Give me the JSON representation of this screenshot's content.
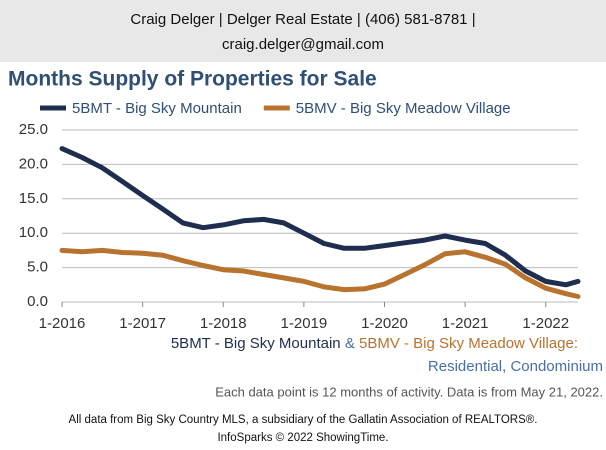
{
  "header": {
    "line1": "Craig Delger | Delger Real Estate | (406) 581-8781 |",
    "line2": "craig.delger@gmail.com"
  },
  "chart_data": {
    "type": "line",
    "title": "Months Supply of Properties for Sale",
    "x": [
      2016.0,
      2016.25,
      2016.5,
      2016.75,
      2017.0,
      2017.25,
      2017.5,
      2017.75,
      2018.0,
      2018.25,
      2018.5,
      2018.75,
      2019.0,
      2019.25,
      2019.5,
      2019.75,
      2020.0,
      2020.25,
      2020.5,
      2020.75,
      2021.0,
      2021.25,
      2021.5,
      2021.75,
      2022.0,
      2022.25,
      2022.4
    ],
    "series": [
      {
        "name": "5BMT - Big Sky Mountain",
        "color": "#1f2d4f",
        "values": [
          22.3,
          21.0,
          19.5,
          17.5,
          15.5,
          13.5,
          11.5,
          10.8,
          11.2,
          11.8,
          12.0,
          11.5,
          10.0,
          8.5,
          7.8,
          7.8,
          8.2,
          8.6,
          9.0,
          9.6,
          9.0,
          8.5,
          6.8,
          4.5,
          3.0,
          2.5,
          3.0
        ]
      },
      {
        "name": "5BMV - Big Sky Meadow Village",
        "color": "#b8732f",
        "values": [
          7.5,
          7.3,
          7.5,
          7.2,
          7.1,
          6.8,
          6.0,
          5.3,
          4.7,
          4.5,
          4.0,
          3.5,
          3.0,
          2.2,
          1.8,
          1.9,
          2.6,
          4.0,
          5.4,
          7.0,
          7.3,
          6.5,
          5.5,
          3.5,
          2.0,
          1.2,
          0.8
        ]
      }
    ],
    "xlim": [
      2016.0,
      2022.4
    ],
    "xticks": [
      {
        "value": 2016,
        "label": "1-2016"
      },
      {
        "value": 2017,
        "label": "1-2017"
      },
      {
        "value": 2018,
        "label": "1-2018"
      },
      {
        "value": 2019,
        "label": "1-2019"
      },
      {
        "value": 2020,
        "label": "1-2020"
      },
      {
        "value": 2021,
        "label": "1-2021"
      },
      {
        "value": 2022,
        "label": "1-2022"
      }
    ],
    "ylim": [
      0,
      25
    ],
    "yticks": [
      {
        "value": 0,
        "label": "0.0"
      },
      {
        "value": 5,
        "label": "5.0"
      },
      {
        "value": 10,
        "label": "10.0"
      },
      {
        "value": 15,
        "label": "15.0"
      },
      {
        "value": 20,
        "label": "20.0"
      },
      {
        "value": 25,
        "label": "25.0"
      }
    ],
    "grid": true,
    "caption_and": "&",
    "caption_end": ":",
    "caption_line2": "Residential, Condominium",
    "note": "Each data point is 12 months of activity. Data is from May 21, 2022."
  },
  "footer": {
    "line1": "All data from Big Sky Country MLS, a subsidiary of the Gallatin Association of REALTORS®.",
    "line2": "InfoSparks © 2022 ShowingTime."
  }
}
